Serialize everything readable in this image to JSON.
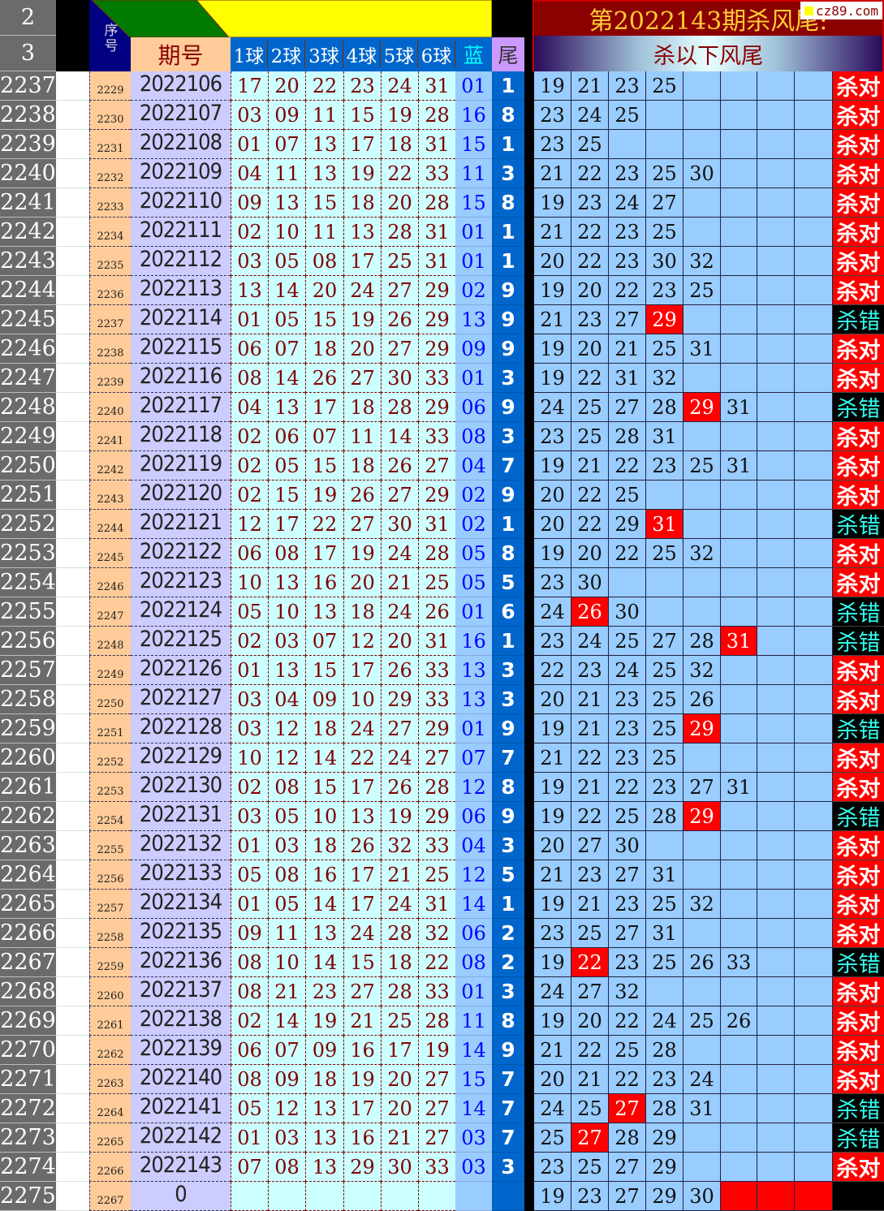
{
  "header": {
    "row_labels": [
      "2",
      "3"
    ],
    "seq_label": "序号",
    "period_label": "期号",
    "ball_labels": [
      "1球",
      "2球",
      "3球",
      "4球",
      "5球",
      "6球"
    ],
    "blue_label": "蓝",
    "tail_label": "尾",
    "title": "第2022143期杀风尾:",
    "subtitle": "杀以下风尾",
    "watermark": "cz89.com"
  },
  "colors": {
    "hit": "#ff0000",
    "kill_cell": "#99ccff",
    "tail": "#0066cc",
    "ok": "#ff0000",
    "wrong_text": "#33ffee",
    "title_bg": "#8b0000",
    "title_text": "#ffcc33"
  },
  "results": {
    "ok": "杀对",
    "bad": "杀错"
  },
  "rows": [
    {
      "rn": "2237",
      "seq": "2229",
      "period": "2022106",
      "balls": [
        "17",
        "20",
        "22",
        "23",
        "24",
        "31"
      ],
      "blue": "01",
      "tail": "1",
      "kills": [
        "19",
        "21",
        "23",
        "25"
      ],
      "hit": [],
      "result": "杀对"
    },
    {
      "rn": "2238",
      "seq": "2230",
      "period": "2022107",
      "balls": [
        "03",
        "09",
        "11",
        "15",
        "19",
        "28"
      ],
      "blue": "16",
      "tail": "8",
      "kills": [
        "23",
        "24",
        "25"
      ],
      "hit": [],
      "result": "杀对"
    },
    {
      "rn": "2239",
      "seq": "2231",
      "period": "2022108",
      "balls": [
        "01",
        "07",
        "13",
        "17",
        "18",
        "31"
      ],
      "blue": "15",
      "tail": "1",
      "kills": [
        "23",
        "25"
      ],
      "hit": [],
      "result": "杀对"
    },
    {
      "rn": "2240",
      "seq": "2232",
      "period": "2022109",
      "balls": [
        "04",
        "11",
        "13",
        "19",
        "22",
        "33"
      ],
      "blue": "11",
      "tail": "3",
      "kills": [
        "21",
        "22",
        "23",
        "25",
        "30"
      ],
      "hit": [],
      "result": "杀对"
    },
    {
      "rn": "2241",
      "seq": "2233",
      "period": "2022110",
      "balls": [
        "09",
        "13",
        "15",
        "18",
        "20",
        "28"
      ],
      "blue": "15",
      "tail": "8",
      "kills": [
        "19",
        "23",
        "24",
        "27"
      ],
      "hit": [],
      "result": "杀对"
    },
    {
      "rn": "2242",
      "seq": "2234",
      "period": "2022111",
      "balls": [
        "02",
        "10",
        "11",
        "13",
        "28",
        "31"
      ],
      "blue": "01",
      "tail": "1",
      "kills": [
        "21",
        "22",
        "23",
        "25"
      ],
      "hit": [],
      "result": "杀对"
    },
    {
      "rn": "2243",
      "seq": "2235",
      "period": "2022112",
      "balls": [
        "03",
        "05",
        "08",
        "17",
        "25",
        "31"
      ],
      "blue": "01",
      "tail": "1",
      "kills": [
        "20",
        "22",
        "23",
        "30",
        "32"
      ],
      "hit": [],
      "result": "杀对"
    },
    {
      "rn": "2244",
      "seq": "2236",
      "period": "2022113",
      "balls": [
        "13",
        "14",
        "20",
        "24",
        "27",
        "29"
      ],
      "blue": "02",
      "tail": "9",
      "kills": [
        "19",
        "20",
        "22",
        "23",
        "25"
      ],
      "hit": [],
      "result": "杀对"
    },
    {
      "rn": "2245",
      "seq": "2237",
      "period": "2022114",
      "balls": [
        "01",
        "05",
        "15",
        "19",
        "26",
        "29"
      ],
      "blue": "13",
      "tail": "9",
      "kills": [
        "21",
        "23",
        "27",
        "29"
      ],
      "hit": [
        3
      ],
      "result": "杀错"
    },
    {
      "rn": "2246",
      "seq": "2238",
      "period": "2022115",
      "balls": [
        "06",
        "07",
        "18",
        "20",
        "27",
        "29"
      ],
      "blue": "09",
      "tail": "9",
      "kills": [
        "19",
        "20",
        "21",
        "25",
        "31"
      ],
      "hit": [],
      "result": "杀对"
    },
    {
      "rn": "2247",
      "seq": "2239",
      "period": "2022116",
      "balls": [
        "08",
        "14",
        "26",
        "27",
        "30",
        "33"
      ],
      "blue": "01",
      "tail": "3",
      "kills": [
        "19",
        "22",
        "31",
        "32"
      ],
      "hit": [],
      "result": "杀对"
    },
    {
      "rn": "2248",
      "seq": "2240",
      "period": "2022117",
      "balls": [
        "04",
        "13",
        "17",
        "18",
        "28",
        "29"
      ],
      "blue": "06",
      "tail": "9",
      "kills": [
        "24",
        "25",
        "27",
        "28",
        "29",
        "31"
      ],
      "hit": [
        4
      ],
      "result": "杀错"
    },
    {
      "rn": "2249",
      "seq": "2241",
      "period": "2022118",
      "balls": [
        "02",
        "06",
        "07",
        "11",
        "14",
        "33"
      ],
      "blue": "08",
      "tail": "3",
      "kills": [
        "23",
        "25",
        "28",
        "31"
      ],
      "hit": [],
      "result": "杀对"
    },
    {
      "rn": "2250",
      "seq": "2242",
      "period": "2022119",
      "balls": [
        "02",
        "05",
        "15",
        "18",
        "26",
        "27"
      ],
      "blue": "04",
      "tail": "7",
      "kills": [
        "19",
        "21",
        "22",
        "23",
        "25",
        "31"
      ],
      "hit": [],
      "result": "杀对"
    },
    {
      "rn": "2251",
      "seq": "2243",
      "period": "2022120",
      "balls": [
        "02",
        "15",
        "19",
        "26",
        "27",
        "29"
      ],
      "blue": "02",
      "tail": "9",
      "kills": [
        "20",
        "22",
        "25"
      ],
      "hit": [],
      "result": "杀对"
    },
    {
      "rn": "2252",
      "seq": "2244",
      "period": "2022121",
      "balls": [
        "12",
        "17",
        "22",
        "27",
        "30",
        "31"
      ],
      "blue": "02",
      "tail": "1",
      "kills": [
        "20",
        "22",
        "29",
        "31"
      ],
      "hit": [
        3
      ],
      "result": "杀错"
    },
    {
      "rn": "2253",
      "seq": "2245",
      "period": "2022122",
      "balls": [
        "06",
        "08",
        "17",
        "19",
        "24",
        "28"
      ],
      "blue": "05",
      "tail": "8",
      "kills": [
        "19",
        "20",
        "22",
        "25",
        "32"
      ],
      "hit": [],
      "result": "杀对"
    },
    {
      "rn": "2254",
      "seq": "2246",
      "period": "2022123",
      "balls": [
        "10",
        "13",
        "16",
        "20",
        "21",
        "25"
      ],
      "blue": "05",
      "tail": "5",
      "kills": [
        "23",
        "30"
      ],
      "hit": [],
      "result": "杀对"
    },
    {
      "rn": "2255",
      "seq": "2247",
      "period": "2022124",
      "balls": [
        "05",
        "10",
        "13",
        "18",
        "24",
        "26"
      ],
      "blue": "01",
      "tail": "6",
      "kills": [
        "24",
        "26",
        "30"
      ],
      "hit": [
        1
      ],
      "result": "杀错"
    },
    {
      "rn": "2256",
      "seq": "2248",
      "period": "2022125",
      "balls": [
        "02",
        "03",
        "07",
        "12",
        "20",
        "31"
      ],
      "blue": "16",
      "tail": "1",
      "kills": [
        "23",
        "24",
        "25",
        "27",
        "28",
        "31"
      ],
      "hit": [
        5
      ],
      "result": "杀错"
    },
    {
      "rn": "2257",
      "seq": "2249",
      "period": "2022126",
      "balls": [
        "01",
        "13",
        "15",
        "17",
        "26",
        "33"
      ],
      "blue": "13",
      "tail": "3",
      "kills": [
        "22",
        "23",
        "24",
        "25",
        "32"
      ],
      "hit": [],
      "result": "杀对"
    },
    {
      "rn": "2258",
      "seq": "2250",
      "period": "2022127",
      "balls": [
        "03",
        "04",
        "09",
        "10",
        "29",
        "33"
      ],
      "blue": "13",
      "tail": "3",
      "kills": [
        "20",
        "21",
        "23",
        "25",
        "26"
      ],
      "hit": [],
      "result": "杀对"
    },
    {
      "rn": "2259",
      "seq": "2251",
      "period": "2022128",
      "balls": [
        "03",
        "12",
        "18",
        "24",
        "27",
        "29"
      ],
      "blue": "01",
      "tail": "9",
      "kills": [
        "19",
        "21",
        "23",
        "25",
        "29"
      ],
      "hit": [
        4
      ],
      "result": "杀错"
    },
    {
      "rn": "2260",
      "seq": "2252",
      "period": "2022129",
      "balls": [
        "10",
        "12",
        "14",
        "22",
        "24",
        "27"
      ],
      "blue": "07",
      "tail": "7",
      "kills": [
        "21",
        "22",
        "23",
        "25"
      ],
      "hit": [],
      "result": "杀对"
    },
    {
      "rn": "2261",
      "seq": "2253",
      "period": "2022130",
      "balls": [
        "02",
        "08",
        "15",
        "17",
        "26",
        "28"
      ],
      "blue": "12",
      "tail": "8",
      "kills": [
        "19",
        "21",
        "22",
        "23",
        "27",
        "31"
      ],
      "hit": [],
      "result": "杀对"
    },
    {
      "rn": "2262",
      "seq": "2254",
      "period": "2022131",
      "balls": [
        "03",
        "05",
        "10",
        "13",
        "19",
        "29"
      ],
      "blue": "06",
      "tail": "9",
      "kills": [
        "19",
        "22",
        "25",
        "28",
        "29"
      ],
      "hit": [
        4
      ],
      "result": "杀错"
    },
    {
      "rn": "2263",
      "seq": "2255",
      "period": "2022132",
      "balls": [
        "01",
        "03",
        "18",
        "26",
        "32",
        "33"
      ],
      "blue": "04",
      "tail": "3",
      "kills": [
        "20",
        "27",
        "30"
      ],
      "hit": [],
      "result": "杀对"
    },
    {
      "rn": "2264",
      "seq": "2256",
      "period": "2022133",
      "balls": [
        "05",
        "08",
        "16",
        "17",
        "21",
        "25"
      ],
      "blue": "12",
      "tail": "5",
      "kills": [
        "21",
        "23",
        "27",
        "31"
      ],
      "hit": [],
      "result": "杀对"
    },
    {
      "rn": "2265",
      "seq": "2257",
      "period": "2022134",
      "balls": [
        "01",
        "05",
        "14",
        "17",
        "24",
        "31"
      ],
      "blue": "14",
      "tail": "1",
      "kills": [
        "19",
        "21",
        "23",
        "25",
        "32"
      ],
      "hit": [],
      "result": "杀对"
    },
    {
      "rn": "2266",
      "seq": "2258",
      "period": "2022135",
      "balls": [
        "09",
        "11",
        "13",
        "24",
        "28",
        "32"
      ],
      "blue": "06",
      "tail": "2",
      "kills": [
        "23",
        "25",
        "27",
        "31"
      ],
      "hit": [],
      "result": "杀对"
    },
    {
      "rn": "2267",
      "seq": "2259",
      "period": "2022136",
      "balls": [
        "08",
        "10",
        "14",
        "15",
        "18",
        "22"
      ],
      "blue": "08",
      "tail": "2",
      "kills": [
        "19",
        "22",
        "23",
        "25",
        "26",
        "33"
      ],
      "hit": [
        1
      ],
      "result": "杀错"
    },
    {
      "rn": "2268",
      "seq": "2260",
      "period": "2022137",
      "balls": [
        "08",
        "21",
        "23",
        "27",
        "28",
        "33"
      ],
      "blue": "01",
      "tail": "3",
      "kills": [
        "24",
        "27",
        "32"
      ],
      "hit": [],
      "result": "杀对"
    },
    {
      "rn": "2269",
      "seq": "2261",
      "period": "2022138",
      "balls": [
        "02",
        "14",
        "19",
        "21",
        "25",
        "28"
      ],
      "blue": "11",
      "tail": "8",
      "kills": [
        "19",
        "20",
        "22",
        "24",
        "25",
        "26"
      ],
      "hit": [],
      "result": "杀对"
    },
    {
      "rn": "2270",
      "seq": "2262",
      "period": "2022139",
      "balls": [
        "06",
        "07",
        "09",
        "16",
        "17",
        "19"
      ],
      "blue": "14",
      "tail": "9",
      "kills": [
        "21",
        "22",
        "25",
        "28"
      ],
      "hit": [],
      "result": "杀对"
    },
    {
      "rn": "2271",
      "seq": "2263",
      "period": "2022140",
      "balls": [
        "08",
        "09",
        "18",
        "19",
        "20",
        "27"
      ],
      "blue": "15",
      "tail": "7",
      "kills": [
        "20",
        "21",
        "22",
        "23",
        "24"
      ],
      "hit": [],
      "result": "杀对"
    },
    {
      "rn": "2272",
      "seq": "2264",
      "period": "2022141",
      "balls": [
        "05",
        "12",
        "13",
        "17",
        "20",
        "27"
      ],
      "blue": "14",
      "tail": "7",
      "kills": [
        "24",
        "25",
        "27",
        "28",
        "31"
      ],
      "hit": [
        2
      ],
      "result": "杀错"
    },
    {
      "rn": "2273",
      "seq": "2265",
      "period": "2022142",
      "balls": [
        "01",
        "03",
        "13",
        "16",
        "21",
        "27"
      ],
      "blue": "03",
      "tail": "7",
      "kills": [
        "25",
        "27",
        "28",
        "29"
      ],
      "hit": [
        1
      ],
      "result": "杀错"
    },
    {
      "rn": "2274",
      "seq": "2266",
      "period": "2022143",
      "balls": [
        "07",
        "08",
        "13",
        "29",
        "30",
        "33"
      ],
      "blue": "03",
      "tail": "3",
      "kills": [
        "23",
        "25",
        "27",
        "29"
      ],
      "hit": [],
      "result": "杀对"
    },
    {
      "rn": "2275",
      "seq": "2267",
      "period": "0",
      "balls": [
        "",
        "",
        "",
        "",
        "",
        ""
      ],
      "blue": "",
      "tail": "",
      "kills": [
        "19",
        "23",
        "27",
        "29",
        "30"
      ],
      "hit": [],
      "red_blank": [
        5,
        6,
        7
      ],
      "result": ""
    }
  ]
}
